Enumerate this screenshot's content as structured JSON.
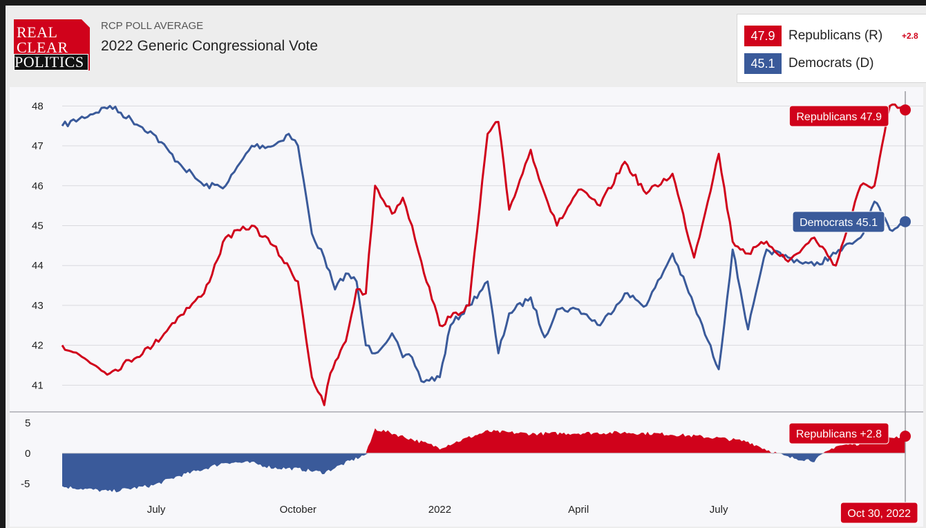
{
  "header": {
    "logo_lines": [
      "REAL",
      "CLEAR",
      "POLITICS"
    ],
    "kicker": "RCP POLL AVERAGE",
    "title": "2022 Generic Congressional Vote"
  },
  "legend": {
    "rep_value": "47.9",
    "rep_name": "Republicans (R)",
    "rep_change": "+2.8",
    "dem_value": "45.1",
    "dem_name": "Democrats (D)"
  },
  "callouts": {
    "rep": "Republicans 47.9",
    "dem": "Democrats 45.1",
    "spread": "Republicans +2.8",
    "date": "Oct 30, 2022"
  },
  "colors": {
    "republican": "#d0021b",
    "democrat": "#3a5a9a"
  },
  "chart_data": {
    "type": "line",
    "y_ticks": [
      48,
      47,
      46,
      45,
      44,
      43,
      42,
      41
    ],
    "ylim": [
      40.4,
      48.3
    ],
    "spread_ticks": [
      5,
      0,
      -5
    ],
    "spread_ylim": [
      -6.5,
      6
    ],
    "x_tick_labels": [
      "July",
      "October",
      "2022",
      "April",
      "July"
    ],
    "x_tick_dates": [
      "2021-07-01",
      "2021-10-01",
      "2022-01-01",
      "2022-04-01",
      "2022-07-01"
    ],
    "xlim": [
      "2021-05-01",
      "2022-10-30"
    ],
    "series": [
      {
        "name": "Republicans",
        "x": [
          "2021-05-01",
          "2021-06-01",
          "2021-06-29",
          "2021-07-15",
          "2021-08-01",
          "2021-08-15",
          "2021-09-01",
          "2021-09-15",
          "2021-10-01",
          "2021-10-10",
          "2021-10-18",
          "2021-10-22",
          "2021-11-01",
          "2021-11-08",
          "2021-11-14",
          "2021-11-20",
          "2021-12-01",
          "2021-12-08",
          "2021-12-14",
          "2021-12-20",
          "2022-01-01",
          "2022-01-08",
          "2022-01-20",
          "2022-02-01",
          "2022-02-08",
          "2022-02-15",
          "2022-03-01",
          "2022-03-10",
          "2022-03-18",
          "2022-04-01",
          "2022-04-15",
          "2022-05-01",
          "2022-05-15",
          "2022-06-01",
          "2022-06-15",
          "2022-07-01",
          "2022-07-10",
          "2022-07-20",
          "2022-08-01",
          "2022-08-15",
          "2022-09-01",
          "2022-09-15",
          "2022-10-01",
          "2022-10-10",
          "2022-10-20",
          "2022-10-30"
        ],
        "values": [
          42.0,
          41.3,
          42.0,
          42.7,
          43.3,
          44.7,
          45.0,
          44.5,
          43.6,
          41.2,
          40.5,
          41.3,
          42.1,
          43.4,
          43.3,
          46.0,
          45.3,
          45.7,
          45.0,
          44.1,
          42.5,
          42.7,
          43.0,
          47.3,
          47.6,
          45.4,
          46.9,
          45.8,
          45.0,
          45.9,
          45.5,
          46.6,
          45.8,
          46.3,
          44.2,
          46.8,
          44.6,
          44.3,
          44.6,
          44.1,
          44.7,
          44.0,
          46.0,
          46.0,
          48.0,
          47.9
        ]
      },
      {
        "name": "Democrats",
        "x": [
          "2021-05-01",
          "2021-06-01",
          "2021-06-29",
          "2021-07-15",
          "2021-08-01",
          "2021-08-15",
          "2021-09-01",
          "2021-09-15",
          "2021-09-25",
          "2021-10-01",
          "2021-10-10",
          "2021-10-18",
          "2021-10-25",
          "2021-11-01",
          "2021-11-08",
          "2021-11-14",
          "2021-11-20",
          "2021-12-01",
          "2021-12-08",
          "2021-12-14",
          "2021-12-20",
          "2022-01-01",
          "2022-01-08",
          "2022-01-20",
          "2022-02-01",
          "2022-02-08",
          "2022-02-15",
          "2022-03-01",
          "2022-03-10",
          "2022-03-18",
          "2022-04-01",
          "2022-04-15",
          "2022-05-01",
          "2022-05-15",
          "2022-06-01",
          "2022-06-15",
          "2022-07-01",
          "2022-07-10",
          "2022-07-20",
          "2022-08-01",
          "2022-08-15",
          "2022-09-01",
          "2022-09-15",
          "2022-10-01",
          "2022-10-10",
          "2022-10-20",
          "2022-10-30"
        ],
        "values": [
          47.5,
          48.0,
          47.3,
          46.6,
          46.0,
          46.0,
          47.0,
          47.0,
          47.3,
          47.0,
          44.8,
          44.2,
          43.4,
          43.8,
          43.6,
          42.0,
          41.8,
          42.3,
          41.7,
          41.7,
          41.1,
          41.2,
          42.5,
          43.0,
          43.6,
          41.8,
          42.8,
          43.2,
          42.2,
          42.9,
          42.9,
          42.5,
          43.3,
          43.0,
          44.3,
          43.0,
          41.4,
          44.4,
          42.4,
          44.4,
          44.2,
          44.0,
          44.3,
          44.7,
          45.6,
          44.9,
          45.1
        ]
      },
      {
        "name": "Spread",
        "x": [
          "2021-05-01",
          "2021-06-01",
          "2021-06-29",
          "2021-07-15",
          "2021-08-01",
          "2021-08-15",
          "2021-09-01",
          "2021-09-15",
          "2021-10-01",
          "2021-10-18",
          "2021-11-01",
          "2021-11-14",
          "2021-11-20",
          "2021-12-01",
          "2022-01-01",
          "2022-01-20",
          "2022-02-01",
          "2022-03-01",
          "2022-04-01",
          "2022-05-01",
          "2022-06-01",
          "2022-07-01",
          "2022-07-20",
          "2022-08-01",
          "2022-08-15",
          "2022-09-01",
          "2022-09-15",
          "2022-10-01",
          "2022-10-20",
          "2022-10-30"
        ],
        "values": [
          -5.5,
          -6.3,
          -5.3,
          -3.8,
          -2.6,
          -1.5,
          -1.6,
          -2.4,
          -2.6,
          -3.2,
          -1.6,
          -0.2,
          4.0,
          3.3,
          0.9,
          2.6,
          3.6,
          3.2,
          3.3,
          3.4,
          3.1,
          2.5,
          1.9,
          0.6,
          -0.7,
          -1.2,
          1.2,
          1.6,
          2.6,
          2.8
        ]
      }
    ]
  }
}
